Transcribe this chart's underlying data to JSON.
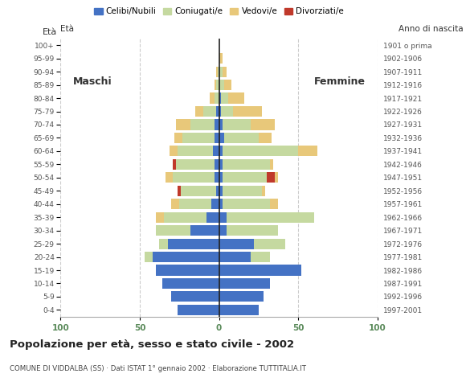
{
  "age_groups": [
    "0-4",
    "5-9",
    "10-14",
    "15-19",
    "20-24",
    "25-29",
    "30-34",
    "35-39",
    "40-44",
    "45-49",
    "50-54",
    "55-59",
    "60-64",
    "65-69",
    "70-74",
    "75-79",
    "80-84",
    "85-89",
    "90-94",
    "95-99",
    "100+"
  ],
  "birth_years": [
    "1997-2001",
    "1992-1996",
    "1987-1991",
    "1982-1986",
    "1977-1981",
    "1972-1976",
    "1967-1971",
    "1962-1966",
    "1957-1961",
    "1952-1956",
    "1947-1951",
    "1942-1946",
    "1937-1941",
    "1932-1936",
    "1927-1931",
    "1922-1926",
    "1917-1921",
    "1912-1916",
    "1907-1911",
    "1902-1906",
    "1901 o prima"
  ],
  "males": {
    "celibi": [
      26,
      30,
      36,
      40,
      42,
      32,
      18,
      8,
      5,
      2,
      3,
      3,
      4,
      3,
      3,
      2,
      0,
      0,
      0,
      0,
      0
    ],
    "coniugati": [
      0,
      0,
      0,
      0,
      5,
      6,
      22,
      27,
      20,
      22,
      26,
      24,
      22,
      20,
      15,
      8,
      3,
      2,
      1,
      0,
      0
    ],
    "vedovi": [
      0,
      0,
      0,
      0,
      0,
      0,
      0,
      5,
      5,
      0,
      5,
      0,
      5,
      5,
      9,
      5,
      3,
      1,
      1,
      0,
      0
    ],
    "divorziati": [
      0,
      0,
      0,
      0,
      0,
      0,
      0,
      0,
      0,
      2,
      0,
      2,
      0,
      0,
      0,
      0,
      0,
      0,
      0,
      0,
      0
    ]
  },
  "females": {
    "nubili": [
      25,
      28,
      32,
      52,
      20,
      22,
      5,
      5,
      2,
      2,
      2,
      2,
      2,
      3,
      2,
      1,
      1,
      0,
      0,
      0,
      0
    ],
    "coniugate": [
      0,
      0,
      0,
      0,
      12,
      20,
      32,
      55,
      30,
      25,
      28,
      30,
      48,
      22,
      18,
      8,
      5,
      3,
      2,
      0,
      0
    ],
    "vedove": [
      0,
      0,
      0,
      0,
      0,
      0,
      0,
      0,
      5,
      2,
      2,
      2,
      12,
      8,
      15,
      18,
      10,
      5,
      3,
      2,
      0
    ],
    "divorziate": [
      0,
      0,
      0,
      0,
      0,
      0,
      0,
      0,
      0,
      0,
      5,
      0,
      0,
      0,
      0,
      0,
      0,
      0,
      0,
      0,
      0
    ]
  },
  "colors": {
    "celibi": "#4472c4",
    "coniugati": "#c5d9a0",
    "vedovi": "#e8c87a",
    "divorziati": "#c0392b"
  },
  "xlim": 100,
  "title": "Popolazione per età, sesso e stato civile - 2002",
  "subtitle": "COMUNE DI VIDDALBA (SS) · Dati ISTAT 1° gennaio 2002 · Elaborazione TUTTITALIA.IT",
  "ylabel_left": "Età",
  "ylabel_right": "Anno di nascita",
  "label_maschi": "Maschi",
  "label_femmine": "Femmine",
  "legend_labels": [
    "Celibi/Nubili",
    "Coniugati/e",
    "Vedovi/e",
    "Divorziati/e"
  ],
  "bg_color": "#ffffff",
  "grid_color": "#cccccc",
  "axis_label_color": "#5a8a5a",
  "tick_label_color": "#555555"
}
